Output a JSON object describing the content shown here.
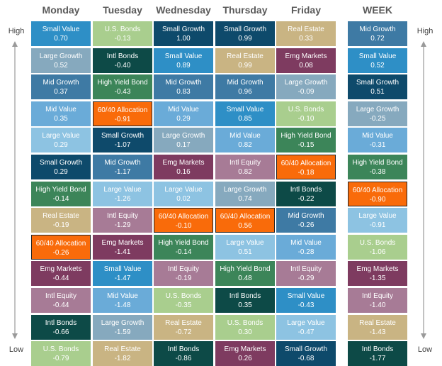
{
  "labels": {
    "high": "High",
    "low": "Low"
  },
  "colors": {
    "Small Value": "#2E8FC6",
    "U.S. Bonds": "#A9CE8E",
    "Small Growth": "#0E4A6B",
    "Real Estate": "#C9B483",
    "Mid Growth": "#3E7AA4",
    "Large Growth": "#86A9BE",
    "Intl Bonds": "#0D4A47",
    "Emg Markets": "#7E3B60",
    "High Yield Bond": "#3C8559",
    "60/40 Allocation": "#F96B0A",
    "Mid Value": "#6AABD8",
    "Large Value": "#8DC3E2",
    "Intl Equity": "#A77B96"
  },
  "chart_data": {
    "type": "table",
    "columns": [
      {
        "header": "Monday",
        "rows": [
          {
            "name": "Small Value",
            "value": "0.70"
          },
          {
            "name": "Large Growth",
            "value": "0.52"
          },
          {
            "name": "Mid Growth",
            "value": "0.37"
          },
          {
            "name": "Mid Value",
            "value": "0.35"
          },
          {
            "name": "Large Value",
            "value": "0.29"
          },
          {
            "name": "Small Growth",
            "value": "0.29"
          },
          {
            "name": "High Yield Bond",
            "value": "-0.14"
          },
          {
            "name": "Real Estate",
            "value": "-0.19"
          },
          {
            "name": "60/40 Allocation",
            "value": "-0.26"
          },
          {
            "name": "Emg Markets",
            "value": "-0.44"
          },
          {
            "name": "Intl Equity",
            "value": "-0.44"
          },
          {
            "name": "Intl Bonds",
            "value": "-0.66"
          },
          {
            "name": "U.S. Bonds",
            "value": "-0.79"
          }
        ]
      },
      {
        "header": "Tuesday",
        "rows": [
          {
            "name": "U.S. Bonds",
            "value": "-0.13"
          },
          {
            "name": "Intl Bonds",
            "value": "-0.40"
          },
          {
            "name": "High Yield Bond",
            "value": "-0.43"
          },
          {
            "name": "60/40 Allocation",
            "value": "-0.91"
          },
          {
            "name": "Small Growth",
            "value": "-1.07"
          },
          {
            "name": "Mid Growth",
            "value": "-1.17"
          },
          {
            "name": "Large Value",
            "value": "-1.26"
          },
          {
            "name": "Intl Equity",
            "value": "-1.29"
          },
          {
            "name": "Emg Markets",
            "value": "-1.41"
          },
          {
            "name": "Small Value",
            "value": "-1.47"
          },
          {
            "name": "Mid Value",
            "value": "-1.48"
          },
          {
            "name": "Large Growth",
            "value": "-1.59"
          },
          {
            "name": "Real Estate",
            "value": "-1.82"
          }
        ]
      },
      {
        "header": "Wednesday",
        "rows": [
          {
            "name": "Small Growth",
            "value": "1.00"
          },
          {
            "name": "Small Value",
            "value": "0.89"
          },
          {
            "name": "Mid Growth",
            "value": "0.83"
          },
          {
            "name": "Mid Value",
            "value": "0.29"
          },
          {
            "name": "Large Growth",
            "value": "0.17"
          },
          {
            "name": "Emg Markets",
            "value": "0.16"
          },
          {
            "name": "Large Value",
            "value": "0.02"
          },
          {
            "name": "60/40 Allocation",
            "value": "-0.10"
          },
          {
            "name": "High Yield Bond",
            "value": "-0.14"
          },
          {
            "name": "Intl Equity",
            "value": "-0.19"
          },
          {
            "name": "U.S. Bonds",
            "value": "-0.35"
          },
          {
            "name": "Real Estate",
            "value": "-0.72"
          },
          {
            "name": "Intl Bonds",
            "value": "-0.86"
          }
        ]
      },
      {
        "header": "Thursday",
        "rows": [
          {
            "name": "Small Growth",
            "value": "0.99"
          },
          {
            "name": "Real Estate",
            "value": "0.99"
          },
          {
            "name": "Mid Growth",
            "value": "0.96"
          },
          {
            "name": "Small Value",
            "value": "0.85"
          },
          {
            "name": "Mid Value",
            "value": "0.82"
          },
          {
            "name": "Intl Equity",
            "value": "0.82"
          },
          {
            "name": "Large Growth",
            "value": "0.74"
          },
          {
            "name": "60/40 Allocation",
            "value": "0.56"
          },
          {
            "name": "Large Value",
            "value": "0.51"
          },
          {
            "name": "High Yield Bond",
            "value": "0.48"
          },
          {
            "name": "Intl Bonds",
            "value": "0.35"
          },
          {
            "name": "U.S. Bonds",
            "value": "0.30"
          },
          {
            "name": "Emg Markets",
            "value": "0.26"
          }
        ]
      },
      {
        "header": "Friday",
        "rows": [
          {
            "name": "Real Estate",
            "value": "0.33"
          },
          {
            "name": "Emg Markets",
            "value": "0.08"
          },
          {
            "name": "Large Growth",
            "value": "-0.09"
          },
          {
            "name": "U.S. Bonds",
            "value": "-0.10"
          },
          {
            "name": "High Yield Bond",
            "value": "-0.15"
          },
          {
            "name": "60/40 Allocation",
            "value": "-0.18"
          },
          {
            "name": "Intl Bonds",
            "value": "-0.22"
          },
          {
            "name": "Mid Growth",
            "value": "-0.26"
          },
          {
            "name": "Mid Value",
            "value": "-0.28"
          },
          {
            "name": "Intl Equity",
            "value": "-0.29"
          },
          {
            "name": "Small Value",
            "value": "-0.43"
          },
          {
            "name": "Large Value",
            "value": "-0.47"
          },
          {
            "name": "Small Growth",
            "value": "-0.68"
          }
        ]
      },
      {
        "header": "WEEK",
        "rows": [
          {
            "name": "Mid Growth",
            "value": "0.72"
          },
          {
            "name": "Small Value",
            "value": "0.52"
          },
          {
            "name": "Small Growth",
            "value": "0.51"
          },
          {
            "name": "Large Growth",
            "value": "-0.25"
          },
          {
            "name": "Mid Value",
            "value": "-0.31"
          },
          {
            "name": "High Yield Bond",
            "value": "-0.38"
          },
          {
            "name": "60/40 Allocation",
            "value": "-0.90"
          },
          {
            "name": "Large Value",
            "value": "-0.91"
          },
          {
            "name": "U.S. Bonds",
            "value": "-1.06"
          },
          {
            "name": "Emg Markets",
            "value": "-1.35"
          },
          {
            "name": "Intl Equity",
            "value": "-1.40"
          },
          {
            "name": "Real Estate",
            "value": "-1.43"
          },
          {
            "name": "Intl Bonds",
            "value": "-1.77"
          }
        ]
      }
    ]
  }
}
